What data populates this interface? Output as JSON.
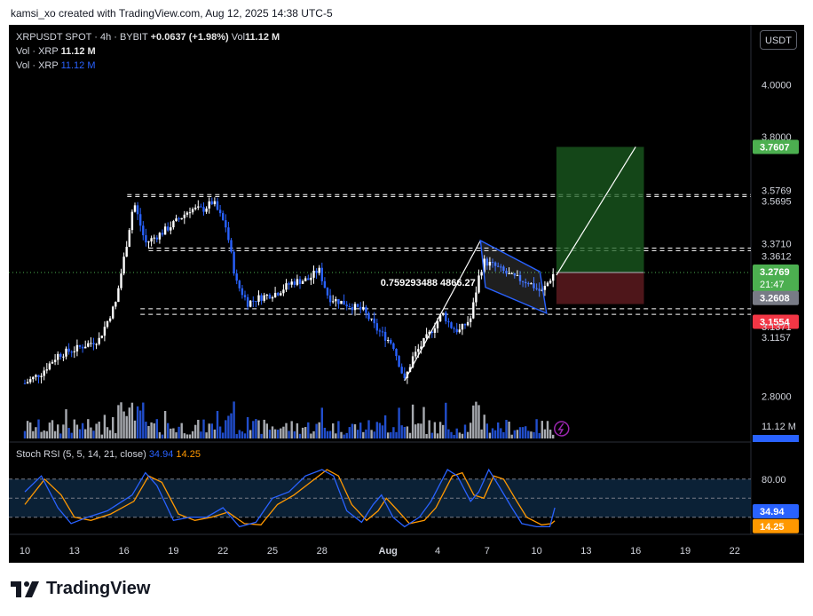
{
  "header": {
    "credit": "kamsi_xo created with TradingView.com, Aug 12, 2025 14:38 UTC-5"
  },
  "legend": {
    "symbol": "XRPUSDT SPOT · 4h · BYBIT",
    "change": "+0.0637 (+1.98%)",
    "vol_label": "Vol",
    "vol_value": "11.12 M",
    "line2_label": "Vol · XRP",
    "line2_value": "11.12 M",
    "line3_label": "Vol · XRP",
    "line3_value": "11.12 M"
  },
  "currency_button": "USDT",
  "pattern_label": "0.759293488 4866.27",
  "brand": {
    "name": "TradingView"
  },
  "colors": {
    "up": "#ffffff",
    "down": "#2962ff",
    "target": "#1b5e20",
    "stop": "#5c1a1e",
    "k_line": "#2962ff",
    "d_line": "#ff9800"
  },
  "chart_data": {
    "type": "candlestick",
    "symbol": "XRPUSDT",
    "timeframe": "4h",
    "y_ticks": [
      "4.0000",
      "3.8000",
      "2.8000"
    ],
    "price_labels": [
      "3.7607",
      "3.5769",
      "3.5695",
      "3.3710",
      "3.3612",
      "3.2769",
      "21:47",
      "3.2608",
      "3.1554",
      "3.1371",
      "3.1157"
    ],
    "x_ticks": [
      "10",
      "13",
      "16",
      "19",
      "22",
      "25",
      "28",
      "Aug",
      "4",
      "7",
      "10",
      "13",
      "16",
      "19",
      "22"
    ],
    "levels": [
      3.5769,
      3.5695,
      3.371,
      3.3612,
      3.1371,
      3.1157
    ],
    "trade_setup": {
      "entry": 3.2769,
      "target": 3.7607,
      "stop": 3.1554
    },
    "ylim": [
      2.78,
      4.05
    ],
    "price_path": [
      {
        "d": 10,
        "p": 2.85
      },
      {
        "d": 11,
        "p": 2.89
      },
      {
        "d": 12,
        "p": 2.96
      },
      {
        "d": 13,
        "p": 2.98
      },
      {
        "d": 14.5,
        "p": 3.02
      },
      {
        "d": 15.5,
        "p": 3.16
      },
      {
        "d": 16.2,
        "p": 3.4
      },
      {
        "d": 16.6,
        "p": 3.55
      },
      {
        "d": 17.3,
        "p": 3.39
      },
      {
        "d": 18.3,
        "p": 3.43
      },
      {
        "d": 19.3,
        "p": 3.48
      },
      {
        "d": 20,
        "p": 3.52
      },
      {
        "d": 20.8,
        "p": 3.52
      },
      {
        "d": 21.4,
        "p": 3.55
      },
      {
        "d": 22.2,
        "p": 3.45
      },
      {
        "d": 22.8,
        "p": 3.24
      },
      {
        "d": 23.5,
        "p": 3.16
      },
      {
        "d": 24.2,
        "p": 3.18
      },
      {
        "d": 25.3,
        "p": 3.2
      },
      {
        "d": 26.2,
        "p": 3.24
      },
      {
        "d": 27.2,
        "p": 3.25
      },
      {
        "d": 27.8,
        "p": 3.29
      },
      {
        "d": 28.4,
        "p": 3.18
      },
      {
        "d": 29.3,
        "p": 3.16
      },
      {
        "d": 30.5,
        "p": 3.13
      },
      {
        "d": 31.3,
        "p": 3.06
      },
      {
        "d": 32.3,
        "p": 3.0
      },
      {
        "d": 33,
        "p": 2.86
      },
      {
        "d": 33.5,
        "p": 2.95
      },
      {
        "d": 34.5,
        "p": 3.04
      },
      {
        "d": 35.3,
        "p": 3.12
      },
      {
        "d": 35.8,
        "p": 3.07
      },
      {
        "d": 36.3,
        "p": 3.05
      },
      {
        "d": 37,
        "p": 3.1
      },
      {
        "d": 37.5,
        "p": 3.26
      },
      {
        "d": 37.8,
        "p": 3.32
      },
      {
        "d": 38.5,
        "p": 3.3
      },
      {
        "d": 39.5,
        "p": 3.26
      },
      {
        "d": 40.5,
        "p": 3.24
      },
      {
        "d": 41.3,
        "p": 3.2
      },
      {
        "d": 41.8,
        "p": 3.25
      },
      {
        "d": 42.1,
        "p": 3.28
      }
    ],
    "volume": {
      "label": "11.12 M"
    },
    "stoch_rsi": {
      "label": "Stoch RSI (5, 5, 14, 21, close)",
      "k_value": "34.94",
      "d_value": "14.25",
      "ticks": [
        "80.00",
        "0.00"
      ],
      "k": [
        {
          "d": 10,
          "v": 60
        },
        {
          "d": 11,
          "v": 85
        },
        {
          "d": 12,
          "v": 35
        },
        {
          "d": 12.8,
          "v": 10
        },
        {
          "d": 13.8,
          "v": 20
        },
        {
          "d": 15,
          "v": 30
        },
        {
          "d": 16.5,
          "v": 55
        },
        {
          "d": 17.3,
          "v": 90
        },
        {
          "d": 18,
          "v": 70
        },
        {
          "d": 19,
          "v": 15
        },
        {
          "d": 20,
          "v": 20
        },
        {
          "d": 21,
          "v": 20
        },
        {
          "d": 22,
          "v": 35
        },
        {
          "d": 23,
          "v": 5
        },
        {
          "d": 24,
          "v": 12
        },
        {
          "d": 25,
          "v": 50
        },
        {
          "d": 26,
          "v": 60
        },
        {
          "d": 27,
          "v": 85
        },
        {
          "d": 28,
          "v": 95
        },
        {
          "d": 28.7,
          "v": 85
        },
        {
          "d": 29.5,
          "v": 30
        },
        {
          "d": 30.4,
          "v": 12
        },
        {
          "d": 31.1,
          "v": 40
        },
        {
          "d": 31.6,
          "v": 55
        },
        {
          "d": 32.3,
          "v": 20
        },
        {
          "d": 33,
          "v": 5
        },
        {
          "d": 33.9,
          "v": 20
        },
        {
          "d": 34.6,
          "v": 45
        },
        {
          "d": 35.6,
          "v": 95
        },
        {
          "d": 36.2,
          "v": 85
        },
        {
          "d": 37,
          "v": 45
        },
        {
          "d": 37.5,
          "v": 60
        },
        {
          "d": 38.1,
          "v": 95
        },
        {
          "d": 38.7,
          "v": 70
        },
        {
          "d": 39.5,
          "v": 35
        },
        {
          "d": 40.1,
          "v": 10
        },
        {
          "d": 41,
          "v": 5
        },
        {
          "d": 41.8,
          "v": 5
        },
        {
          "d": 42.1,
          "v": 34.94
        }
      ],
      "d_series": [
        {
          "d": 10,
          "v": 40
        },
        {
          "d": 11.2,
          "v": 80
        },
        {
          "d": 12.2,
          "v": 55
        },
        {
          "d": 13,
          "v": 20
        },
        {
          "d": 14,
          "v": 15
        },
        {
          "d": 15.2,
          "v": 25
        },
        {
          "d": 16.6,
          "v": 45
        },
        {
          "d": 17.5,
          "v": 85
        },
        {
          "d": 18.3,
          "v": 75
        },
        {
          "d": 19.3,
          "v": 25
        },
        {
          "d": 20.3,
          "v": 15
        },
        {
          "d": 21.3,
          "v": 20
        },
        {
          "d": 22.3,
          "v": 28
        },
        {
          "d": 23.3,
          "v": 10
        },
        {
          "d": 24.3,
          "v": 8
        },
        {
          "d": 25.3,
          "v": 40
        },
        {
          "d": 26.3,
          "v": 55
        },
        {
          "d": 27.3,
          "v": 75
        },
        {
          "d": 28.3,
          "v": 95
        },
        {
          "d": 29,
          "v": 85
        },
        {
          "d": 29.8,
          "v": 40
        },
        {
          "d": 30.7,
          "v": 15
        },
        {
          "d": 31.4,
          "v": 30
        },
        {
          "d": 31.9,
          "v": 50
        },
        {
          "d": 32.6,
          "v": 30
        },
        {
          "d": 33.3,
          "v": 10
        },
        {
          "d": 34.2,
          "v": 15
        },
        {
          "d": 34.9,
          "v": 35
        },
        {
          "d": 35.9,
          "v": 85
        },
        {
          "d": 36.5,
          "v": 90
        },
        {
          "d": 37.2,
          "v": 55
        },
        {
          "d": 37.8,
          "v": 50
        },
        {
          "d": 38.4,
          "v": 85
        },
        {
          "d": 39,
          "v": 80
        },
        {
          "d": 39.8,
          "v": 45
        },
        {
          "d": 40.4,
          "v": 20
        },
        {
          "d": 41.3,
          "v": 8
        },
        {
          "d": 41.9,
          "v": 10
        },
        {
          "d": 42.1,
          "v": 14.25
        }
      ]
    }
  }
}
